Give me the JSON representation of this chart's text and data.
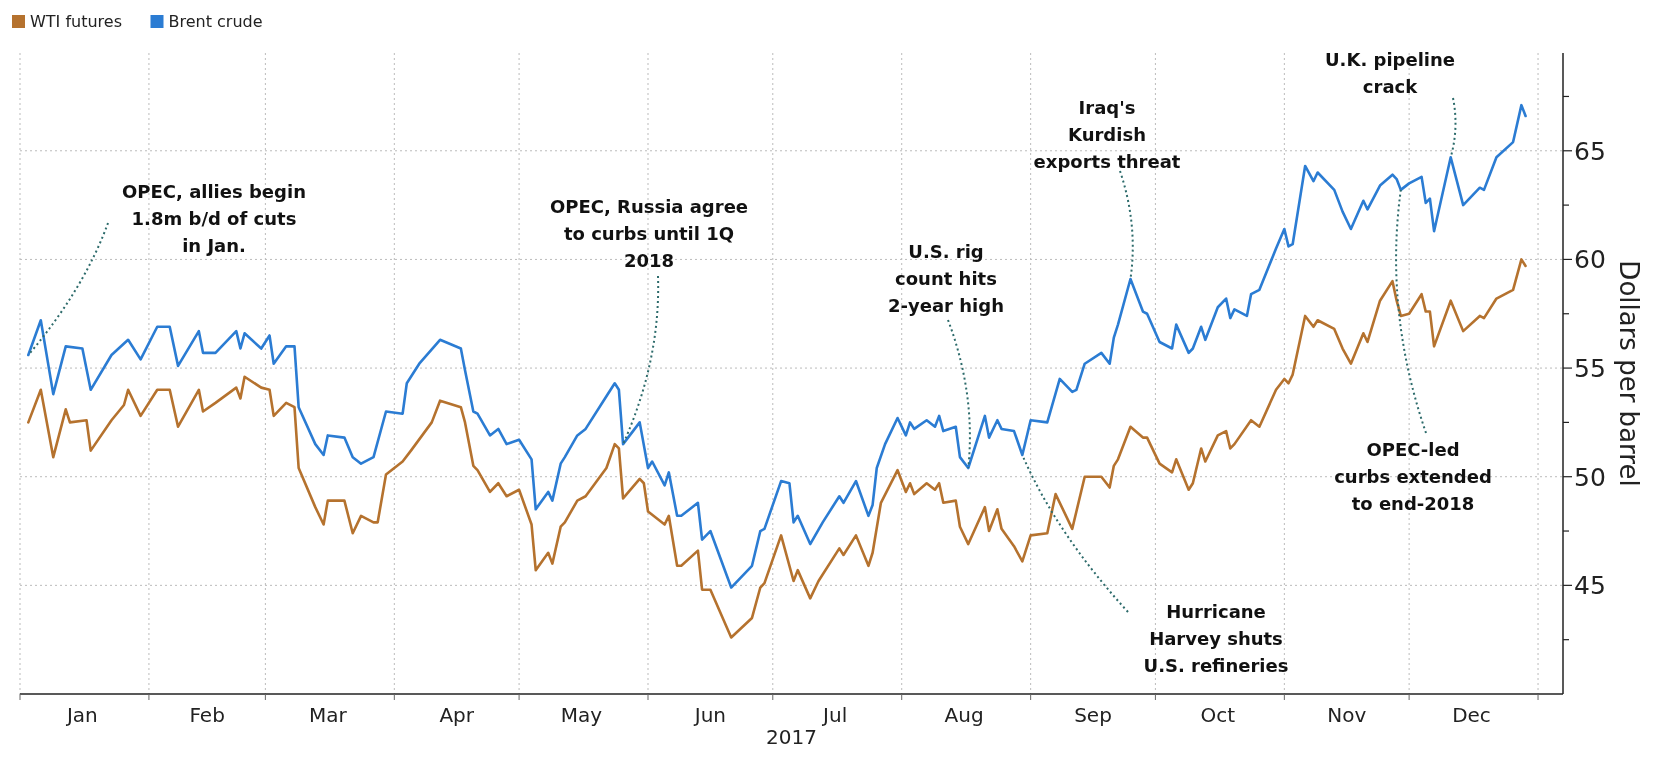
{
  "chart_data": {
    "type": "line",
    "xlabel": "2017",
    "ylabel": "Dollars per barrel",
    "xlim": [
      "2017-01-01",
      "2018-01-07"
    ],
    "xticks": [
      {
        "value": "2017-01-01",
        "label": null
      },
      {
        "value": "2017-01-16",
        "label": "Jan"
      },
      {
        "value": "2017-02-01",
        "label": null
      },
      {
        "value": "2017-02-15",
        "label": "Feb"
      },
      {
        "value": "2017-03-01",
        "label": null
      },
      {
        "value": "2017-03-16",
        "label": "Mar"
      },
      {
        "value": "2017-04-01",
        "label": null
      },
      {
        "value": "2017-04-16",
        "label": "Apr"
      },
      {
        "value": "2017-05-01",
        "label": null
      },
      {
        "value": "2017-05-16",
        "label": "May"
      },
      {
        "value": "2017-06-01",
        "label": null
      },
      {
        "value": "2017-06-16",
        "label": "Jun"
      },
      {
        "value": "2017-07-01",
        "label": null
      },
      {
        "value": "2017-07-16",
        "label": "Jul"
      },
      {
        "value": "2017-08-01",
        "label": null
      },
      {
        "value": "2017-08-16",
        "label": "Aug"
      },
      {
        "value": "2017-09-01",
        "label": null
      },
      {
        "value": "2017-09-16",
        "label": "Sep"
      },
      {
        "value": "2017-10-01",
        "label": null
      },
      {
        "value": "2017-10-16",
        "label": "Oct"
      },
      {
        "value": "2017-11-01",
        "label": null
      },
      {
        "value": "2017-11-16",
        "label": "Nov"
      },
      {
        "value": "2017-12-01",
        "label": null
      },
      {
        "value": "2017-12-16",
        "label": "Dec"
      },
      {
        "value": "2018-01-01",
        "label": null
      }
    ],
    "ylim": [
      40,
      69.5
    ],
    "yticks": [
      {
        "value": 42.5,
        "label": null
      },
      45,
      {
        "value": 47.5,
        "label": null
      },
      50,
      {
        "value": 52.5,
        "label": null
      },
      55,
      {
        "value": 57.5,
        "label": null
      },
      60,
      {
        "value": 62.5,
        "label": null
      },
      65,
      {
        "value": 67.5,
        "label": null
      }
    ],
    "grid": true,
    "legend": "top left",
    "line_style": "solid",
    "marker": "none",
    "series": [
      {
        "name": "WTI futures",
        "color": "#b5722e",
        "x": [
          "2017-01-03",
          "2017-01-06",
          "2017-01-09",
          "2017-01-12",
          "2017-01-13",
          "2017-01-17",
          "2017-01-18",
          "2017-01-23",
          "2017-01-26",
          "2017-01-27",
          "2017-01-30",
          "2017-02-03",
          "2017-02-06",
          "2017-02-08",
          "2017-02-13",
          "2017-02-14",
          "2017-02-17",
          "2017-02-22",
          "2017-02-23",
          "2017-02-24",
          "2017-02-28",
          "2017-03-02",
          "2017-03-03",
          "2017-03-06",
          "2017-03-08",
          "2017-03-09",
          "2017-03-13",
          "2017-03-15",
          "2017-03-16",
          "2017-03-20",
          "2017-03-22",
          "2017-03-24",
          "2017-03-27",
          "2017-03-28",
          "2017-03-30",
          "2017-04-03",
          "2017-04-05",
          "2017-04-10",
          "2017-04-12",
          "2017-04-17",
          "2017-04-18",
          "2017-04-20",
          "2017-04-21",
          "2017-04-24",
          "2017-04-26",
          "2017-04-28",
          "2017-05-01",
          "2017-05-04",
          "2017-05-05",
          "2017-05-08",
          "2017-05-09",
          "2017-05-11",
          "2017-05-12",
          "2017-05-15",
          "2017-05-17",
          "2017-05-22",
          "2017-05-24",
          "2017-05-25",
          "2017-05-26",
          "2017-05-30",
          "2017-05-31",
          "2017-06-01",
          "2017-06-05",
          "2017-06-06",
          "2017-06-08",
          "2017-06-09",
          "2017-06-13",
          "2017-06-14",
          "2017-06-16",
          "2017-06-21",
          "2017-06-26",
          "2017-06-28",
          "2017-06-29",
          "2017-07-03",
          "2017-07-06",
          "2017-07-07",
          "2017-07-10",
          "2017-07-12",
          "2017-07-17",
          "2017-07-18",
          "2017-07-21",
          "2017-07-24",
          "2017-07-25",
          "2017-07-27",
          "2017-07-31",
          "2017-08-02",
          "2017-08-03",
          "2017-08-04",
          "2017-08-07",
          "2017-08-09",
          "2017-08-10",
          "2017-08-11",
          "2017-08-14",
          "2017-08-15",
          "2017-08-17",
          "2017-08-21",
          "2017-08-22",
          "2017-08-24",
          "2017-08-25",
          "2017-08-28",
          "2017-08-30",
          "2017-09-01",
          "2017-09-05",
          "2017-09-07",
          "2017-09-11",
          "2017-09-12",
          "2017-09-14",
          "2017-09-18",
          "2017-09-20",
          "2017-09-21",
          "2017-09-22",
          "2017-09-25",
          "2017-09-28",
          "2017-09-29",
          "2017-10-02",
          "2017-10-05",
          "2017-10-06",
          "2017-10-09",
          "2017-10-10",
          "2017-10-12",
          "2017-10-13",
          "2017-10-16",
          "2017-10-18",
          "2017-10-19",
          "2017-10-20",
          "2017-10-24",
          "2017-10-26",
          "2017-10-30",
          "2017-11-01",
          "2017-11-02",
          "2017-11-03",
          "2017-11-06",
          "2017-11-08",
          "2017-11-09",
          "2017-11-13",
          "2017-11-15",
          "2017-11-17",
          "2017-11-20",
          "2017-11-21",
          "2017-11-24",
          "2017-11-27",
          "2017-11-28",
          "2017-11-29",
          "2017-12-01",
          "2017-12-04",
          "2017-12-05",
          "2017-12-06",
          "2017-12-07",
          "2017-12-11",
          "2017-12-14",
          "2017-12-18",
          "2017-12-19",
          "2017-12-22",
          "2017-12-26",
          "2017-12-28",
          "2017-12-29"
        ],
        "values": [
          52.5,
          54.0,
          50.9,
          53.1,
          52.5,
          52.6,
          51.2,
          52.6,
          53.3,
          54.0,
          52.8,
          54.0,
          54.0,
          52.3,
          54.0,
          53.0,
          53.4,
          54.1,
          53.6,
          54.6,
          54.1,
          54.0,
          52.8,
          53.4,
          53.2,
          50.4,
          48.6,
          47.8,
          48.9,
          48.9,
          47.4,
          48.2,
          47.9,
          47.9,
          50.1,
          50.7,
          51.2,
          52.5,
          53.5,
          53.2,
          52.5,
          50.5,
          50.3,
          49.3,
          49.7,
          49.1,
          49.4,
          47.8,
          45.7,
          46.5,
          46.0,
          47.7,
          47.9,
          48.9,
          49.1,
          50.4,
          51.5,
          51.3,
          49.0,
          49.9,
          49.7,
          48.4,
          47.8,
          48.2,
          45.9,
          45.9,
          46.6,
          44.8,
          44.8,
          42.6,
          43.5,
          44.9,
          45.1,
          47.3,
          45.2,
          45.7,
          44.4,
          45.2,
          46.7,
          46.4,
          47.3,
          45.9,
          46.5,
          48.8,
          50.3,
          49.3,
          49.7,
          49.2,
          49.7,
          49.4,
          49.7,
          48.8,
          48.9,
          47.7,
          46.9,
          48.6,
          47.5,
          48.5,
          47.6,
          46.8,
          46.1,
          47.3,
          47.4,
          49.2,
          47.6,
          48.4,
          50.0,
          50.0,
          49.5,
          50.5,
          50.8,
          52.3,
          51.8,
          51.8,
          50.6,
          50.2,
          50.8,
          49.4,
          49.7,
          51.3,
          50.7,
          51.9,
          52.1,
          51.3,
          51.5,
          52.6,
          52.3,
          54.0,
          54.5,
          54.3,
          54.7,
          57.4,
          56.9,
          57.2,
          56.8,
          55.9,
          55.2,
          56.6,
          56.2,
          58.1,
          59.0,
          58.1,
          57.4,
          57.5,
          58.4,
          57.6,
          57.6,
          56.0,
          58.1,
          56.7,
          57.4,
          57.3,
          58.2,
          58.6,
          60.0,
          59.7
        ]
      },
      {
        "name": "Brent crude",
        "color": "#2b7cd3",
        "x": [
          "2017-01-03",
          "2017-01-06",
          "2017-01-09",
          "2017-01-12",
          "2017-01-16",
          "2017-01-18",
          "2017-01-23",
          "2017-01-27",
          "2017-01-30",
          "2017-02-03",
          "2017-02-06",
          "2017-02-08",
          "2017-02-13",
          "2017-02-14",
          "2017-02-17",
          "2017-02-22",
          "2017-02-23",
          "2017-02-24",
          "2017-02-28",
          "2017-03-02",
          "2017-03-03",
          "2017-03-06",
          "2017-03-08",
          "2017-03-09",
          "2017-03-13",
          "2017-03-15",
          "2017-03-16",
          "2017-03-20",
          "2017-03-22",
          "2017-03-24",
          "2017-03-27",
          "2017-03-30",
          "2017-04-03",
          "2017-04-04",
          "2017-04-07",
          "2017-04-12",
          "2017-04-17",
          "2017-04-18",
          "2017-04-20",
          "2017-04-21",
          "2017-04-24",
          "2017-04-26",
          "2017-04-28",
          "2017-05-01",
          "2017-05-04",
          "2017-05-05",
          "2017-05-08",
          "2017-05-09",
          "2017-05-11",
          "2017-05-12",
          "2017-05-15",
          "2017-05-17",
          "2017-05-22",
          "2017-05-24",
          "2017-05-25",
          "2017-05-26",
          "2017-05-30",
          "2017-06-01",
          "2017-06-02",
          "2017-06-05",
          "2017-06-06",
          "2017-06-08",
          "2017-06-09",
          "2017-06-13",
          "2017-06-14",
          "2017-06-16",
          "2017-06-21",
          "2017-06-26",
          "2017-06-28",
          "2017-06-29",
          "2017-07-03",
          "2017-07-05",
          "2017-07-06",
          "2017-07-07",
          "2017-07-10",
          "2017-07-13",
          "2017-07-17",
          "2017-07-18",
          "2017-07-21",
          "2017-07-24",
          "2017-07-25",
          "2017-07-26",
          "2017-07-28",
          "2017-07-31",
          "2017-08-02",
          "2017-08-03",
          "2017-08-04",
          "2017-08-07",
          "2017-08-09",
          "2017-08-10",
          "2017-08-11",
          "2017-08-14",
          "2017-08-15",
          "2017-08-17",
          "2017-08-21",
          "2017-08-22",
          "2017-08-24",
          "2017-08-25",
          "2017-08-28",
          "2017-08-30",
          "2017-09-01",
          "2017-09-05",
          "2017-09-08",
          "2017-09-11",
          "2017-09-12",
          "2017-09-14",
          "2017-09-18",
          "2017-09-20",
          "2017-09-21",
          "2017-09-22",
          "2017-09-25",
          "2017-09-28",
          "2017-09-29",
          "2017-10-02",
          "2017-10-05",
          "2017-10-06",
          "2017-10-09",
          "2017-10-10",
          "2017-10-12",
          "2017-10-13",
          "2017-10-16",
          "2017-10-18",
          "2017-10-19",
          "2017-10-20",
          "2017-10-23",
          "2017-10-24",
          "2017-10-26",
          "2017-10-30",
          "2017-11-01",
          "2017-11-02",
          "2017-11-03",
          "2017-11-06",
          "2017-11-08",
          "2017-11-09",
          "2017-11-13",
          "2017-11-15",
          "2017-11-17",
          "2017-11-20",
          "2017-11-21",
          "2017-11-24",
          "2017-11-27",
          "2017-11-28",
          "2017-11-29",
          "2017-12-01",
          "2017-12-04",
          "2017-12-05",
          "2017-12-06",
          "2017-12-07",
          "2017-12-11",
          "2017-12-14",
          "2017-12-18",
          "2017-12-19",
          "2017-12-22",
          "2017-12-26",
          "2017-12-28",
          "2017-12-29"
        ],
        "values": [
          55.6,
          57.2,
          53.8,
          56.0,
          55.9,
          54.0,
          55.6,
          56.3,
          55.4,
          56.9,
          56.9,
          55.1,
          56.7,
          55.7,
          55.7,
          56.7,
          55.9,
          56.6,
          55.9,
          56.5,
          55.2,
          56.0,
          56.0,
          53.2,
          51.5,
          51.0,
          51.9,
          51.8,
          50.9,
          50.6,
          50.9,
          53.0,
          52.9,
          54.3,
          55.2,
          56.3,
          55.9,
          54.9,
          53.0,
          52.9,
          51.9,
          52.2,
          51.5,
          51.7,
          50.8,
          48.5,
          49.3,
          48.9,
          50.6,
          50.9,
          51.9,
          52.2,
          53.7,
          54.3,
          54.0,
          51.5,
          52.5,
          50.4,
          50.7,
          49.6,
          50.2,
          48.2,
          48.2,
          48.8,
          47.1,
          47.5,
          44.9,
          45.9,
          47.5,
          47.6,
          49.8,
          49.7,
          47.9,
          48.2,
          46.9,
          47.9,
          49.1,
          48.8,
          49.8,
          48.2,
          48.7,
          50.4,
          51.5,
          52.7,
          51.9,
          52.5,
          52.2,
          52.6,
          52.3,
          52.8,
          52.1,
          52.3,
          50.9,
          50.4,
          52.8,
          51.8,
          52.6,
          52.2,
          52.1,
          51.0,
          52.6,
          52.5,
          54.5,
          53.9,
          54.0,
          55.2,
          55.7,
          55.2,
          56.4,
          57.0,
          59.1,
          57.6,
          57.5,
          56.2,
          55.9,
          57.0,
          55.7,
          55.9,
          56.9,
          56.3,
          57.8,
          58.2,
          57.3,
          57.7,
          57.4,
          58.4,
          58.6,
          60.5,
          61.4,
          60.6,
          60.7,
          64.3,
          63.6,
          64.0,
          63.2,
          62.2,
          61.4,
          62.7,
          62.3,
          63.4,
          63.9,
          63.7,
          63.2,
          63.5,
          63.8,
          62.6,
          62.8,
          61.3,
          64.7,
          62.5,
          63.3,
          63.2,
          64.7,
          65.4,
          67.1,
          66.6
        ]
      }
    ],
    "annotations": [
      {
        "text": "OPEC, allies begin\n1.8m b/d of cuts\nin Jan.",
        "x": "2017-01-03",
        "y": 55.6
      },
      {
        "text": "OPEC, Russia agree\nto curbs until 1Q\n2018",
        "x": "2017-05-26",
        "y": 51.5
      },
      {
        "text": "U.S. rig\ncount hits\n2-year high",
        "x": "2017-08-17",
        "y": 50.4
      },
      {
        "text": "Hurricane\nHarvey shuts\nU.S. refineries",
        "x": "2017-08-30",
        "y": 51.0
      },
      {
        "text": "Iraq's\nKurdish\nexports threat",
        "x": "2017-09-25",
        "y": 59.1
      },
      {
        "text": "U.K. pipeline\ncrack",
        "x": "2017-12-11",
        "y": 64.7
      },
      {
        "text": "OPEC-led\ncurbs extended\nto end-2018",
        "x": "2017-11-29",
        "y": 63.2
      }
    ]
  }
}
